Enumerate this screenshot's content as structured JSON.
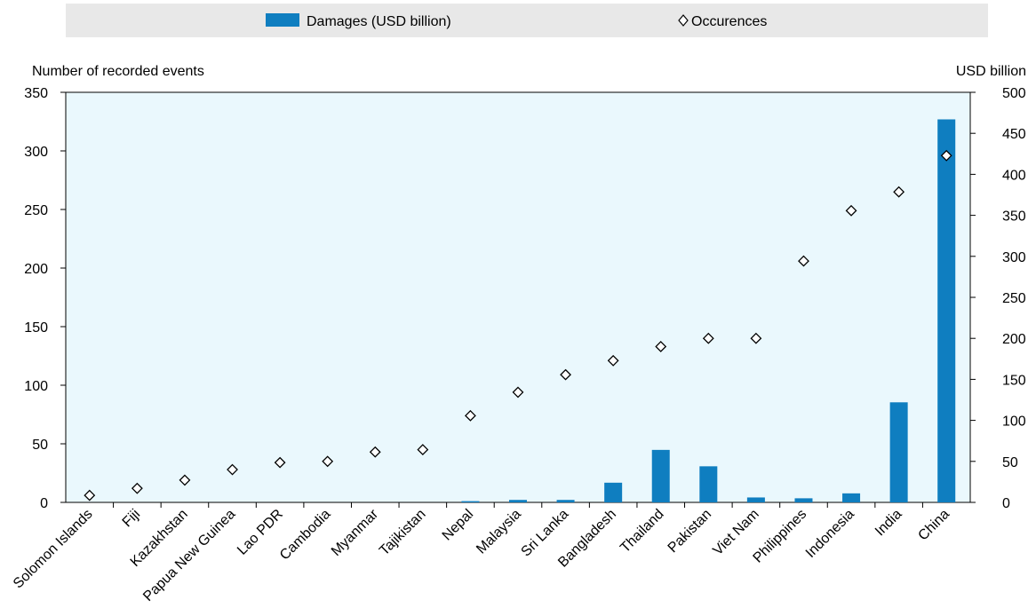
{
  "chart_data": {
    "type": "bar",
    "categories": [
      "Solomon Islands",
      "Fiji",
      "Kazakhstan",
      "Papua New Guinea",
      "Lao PDR",
      "Cambodia",
      "Myanmar",
      "Tajikistan",
      "Nepal",
      "Malaysia",
      "Sri Lanka",
      "Bangladesh",
      "Thailand",
      "Pakistan",
      "Viet Nam",
      "Philippines",
      "Indonesia",
      "India",
      "China"
    ],
    "series": [
      {
        "name": "Damages (USD billion)",
        "mark": "bar",
        "axis": "right",
        "color": "#0f7ec0",
        "values": [
          0,
          0,
          0,
          0,
          0,
          0,
          0,
          0,
          1.5,
          3,
          3,
          24,
          64,
          44,
          6,
          5,
          11,
          122,
          467
        ]
      },
      {
        "name": "Occurences",
        "mark": "diamond",
        "axis": "left",
        "color": "#000000",
        "values": [
          6,
          12,
          19,
          28,
          34,
          35,
          43,
          45,
          74,
          94,
          109,
          121,
          133,
          140,
          140,
          206,
          249,
          265,
          296
        ]
      }
    ],
    "y_left": {
      "label": "Number of recorded events",
      "min": 0,
      "max": 350,
      "ticks": [
        "0",
        "50",
        "100",
        "150",
        "200",
        "250",
        "300",
        "350"
      ]
    },
    "y_right": {
      "label": "USD billion",
      "min": 0,
      "max": 500,
      "ticks": [
        "0",
        "50",
        "100",
        "150",
        "200",
        "250",
        "300",
        "350",
        "400",
        "450",
        "500"
      ]
    },
    "grid": false,
    "legend_position": "top",
    "colors": {
      "plot_bg": "#eaf8fd",
      "legend_bg": "#e8e8e8",
      "bar": "#0f7ec0"
    }
  }
}
